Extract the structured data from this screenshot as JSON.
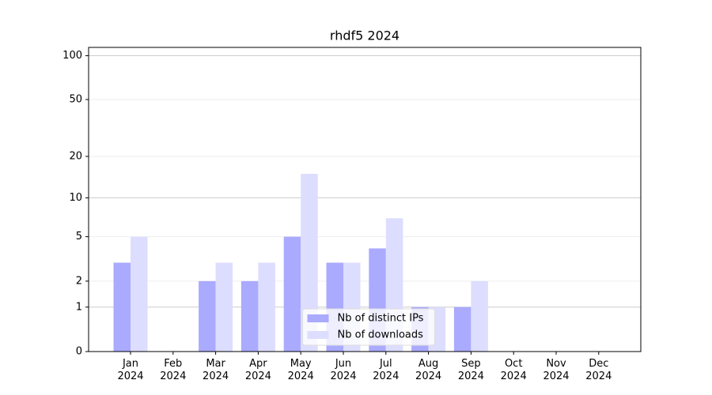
{
  "chart_data": {
    "type": "bar",
    "title": "rhdf5 2024",
    "categories": [
      "Jan\n2024",
      "Feb\n2024",
      "Mar\n2024",
      "Apr\n2024",
      "May\n2024",
      "Jun\n2024",
      "Jul\n2024",
      "Aug\n2024",
      "Sep\n2024",
      "Oct\n2024",
      "Nov\n2024",
      "Dec\n2024"
    ],
    "series": [
      {
        "name": "Nb of distinct IPs",
        "color": "#aaaaff",
        "values": [
          3,
          0,
          2,
          2,
          5,
          3,
          4,
          1,
          1,
          0,
          0,
          0
        ]
      },
      {
        "name": "Nb of downloads",
        "color": "#ddddff",
        "values": [
          5,
          0,
          3,
          3,
          15,
          3,
          7,
          1,
          2,
          0,
          0,
          0
        ]
      }
    ],
    "yscale": "log1p",
    "ylim": [
      0,
      114
    ],
    "yticks": [
      0,
      1,
      2,
      5,
      10,
      20,
      50,
      100
    ],
    "grid": true,
    "legend": "lower center"
  }
}
